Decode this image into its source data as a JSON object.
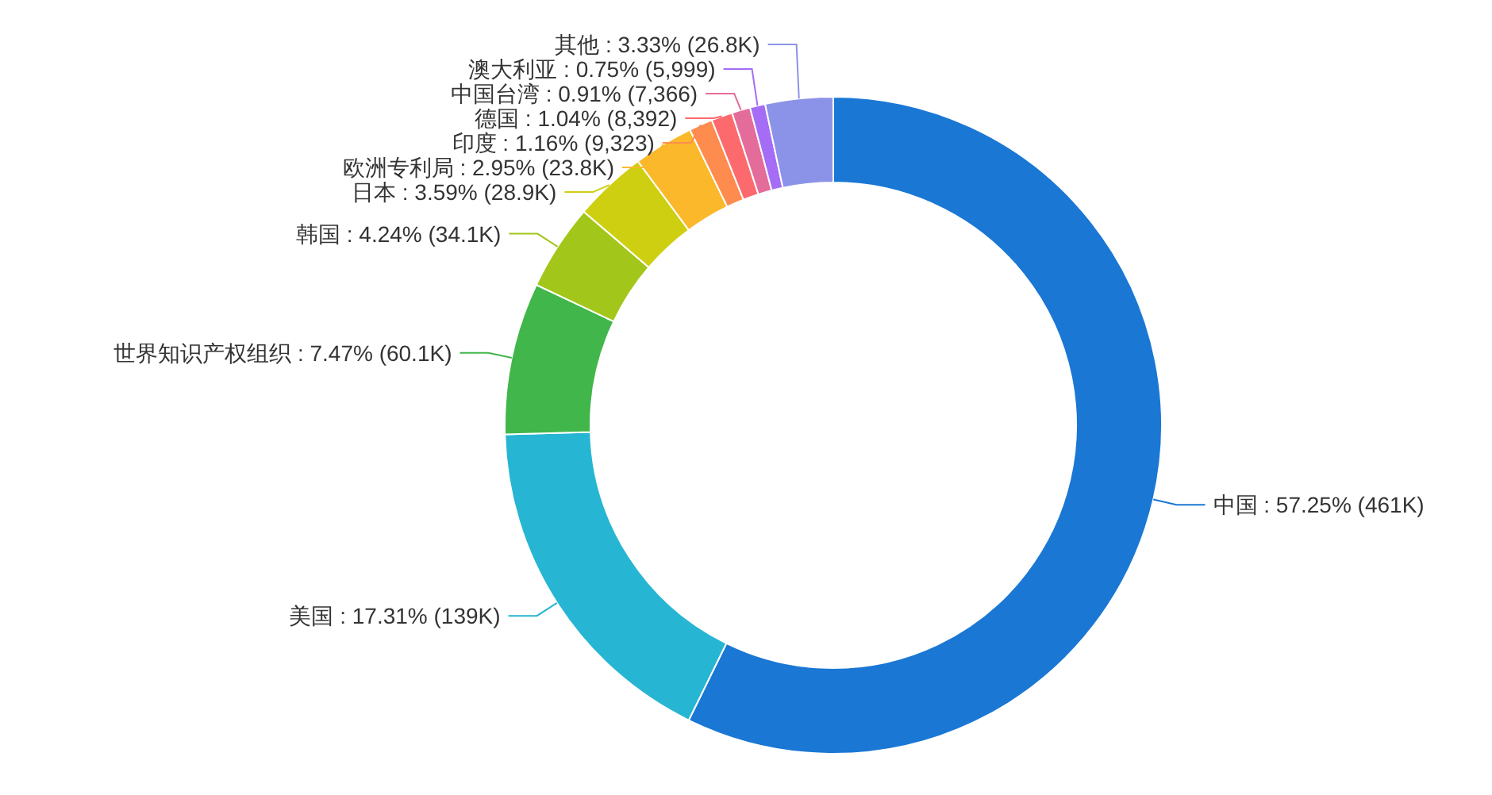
{
  "chart_data": {
    "type": "donut",
    "categories": [
      "中国",
      "美国",
      "世界知识产权组织",
      "韩国",
      "日本",
      "欧洲专利局",
      "印度",
      "德国",
      "中国台湾",
      "澳大利亚",
      "其他"
    ],
    "values": [
      57.25,
      17.31,
      7.47,
      4.24,
      3.59,
      2.95,
      1.16,
      1.04,
      0.91,
      0.75,
      3.33
    ],
    "value_labels": [
      "57.25% (461K)",
      "17.31% (139K)",
      "7.47% (60.1K)",
      "4.24% (34.1K)",
      "3.59% (28.9K)",
      "2.95% (23.8K)",
      "1.16% (9,323)",
      "1.04% (8,392)",
      "0.91% (7,366)",
      "0.75% (5,999)",
      "3.33% (26.8K)"
    ],
    "colors": [
      "#1a77d4",
      "#26b5d2",
      "#41b64a",
      "#a3c61a",
      "#cfcf12",
      "#fbb82a",
      "#fd8c4e",
      "#fc6a6e",
      "#e46c9a",
      "#a56cf6",
      "#8b93e8"
    ]
  }
}
